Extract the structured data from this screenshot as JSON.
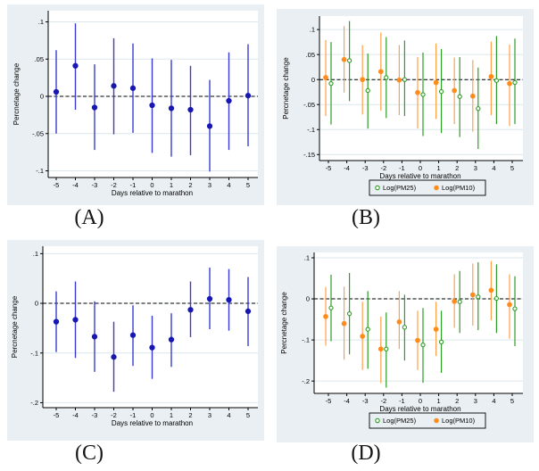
{
  "figure": {
    "background": "#ffffff"
  },
  "colors": {
    "panel_bg": "#e9eff3",
    "plot_bg": "#ffffff",
    "grid": "#dce7ed",
    "axis": "#000000",
    "zero_line": "#000000",
    "text": "#000000",
    "blue_line": "#3b3bd1",
    "blue_marker": "#1717b2",
    "green": "#2f9d27",
    "orange_line": "#ffa04a",
    "orange_marker": "#ff8c1a",
    "legend_border": "#000000"
  },
  "panels": [
    {
      "letter": "(A)"
    },
    {
      "letter": "(B)"
    },
    {
      "letter": "(C)"
    },
    {
      "letter": "(D)"
    }
  ],
  "chart_data": [
    {
      "id": "A",
      "type": "scatter",
      "title": "",
      "xlabel": "Days relative to marathon",
      "ylabel": "Percnetage change",
      "x_labels": [
        "-5",
        "-4",
        "-3",
        "-2",
        "-1",
        "0",
        "1",
        "2",
        "3",
        "4",
        "5"
      ],
      "x_values": [
        -5,
        -4,
        -3,
        -2,
        -1,
        0,
        1,
        2,
        3,
        4,
        5
      ],
      "ylim": [
        -0.109,
        0.115
      ],
      "yticks": [
        {
          "v": 0.1,
          "label": ".1"
        },
        {
          "v": 0.05,
          "label": ".05"
        },
        {
          "v": 0,
          "label": "0"
        },
        {
          "v": -0.05,
          "label": "-.05"
        },
        {
          "v": -0.1,
          "label": "-.1"
        }
      ],
      "zero_line": true,
      "grid": true,
      "legend": false,
      "series": [
        {
          "name": "",
          "color_key": "blue",
          "marker": "filled",
          "offset": 0,
          "est": [
            0.006,
            0.041,
            -0.015,
            0.014,
            0.011,
            -0.012,
            -0.016,
            -0.018,
            -0.04,
            -0.006,
            0.001
          ],
          "lo": [
            -0.05,
            -0.018,
            -0.072,
            -0.051,
            -0.049,
            -0.076,
            -0.081,
            -0.079,
            -0.101,
            -0.072,
            -0.067
          ],
          "hi": [
            0.062,
            0.098,
            0.043,
            0.078,
            0.071,
            0.051,
            0.049,
            0.041,
            0.022,
            0.059,
            0.07
          ]
        }
      ]
    },
    {
      "id": "B",
      "type": "scatter",
      "title": "",
      "xlabel": "Days relative to marathon",
      "ylabel": "Percnetage change",
      "x_labels": [
        "-5",
        "-4",
        "-3",
        "-2",
        "-1",
        "0",
        "1",
        "2",
        "3",
        "4",
        "5"
      ],
      "x_values": [
        -5,
        -4,
        -3,
        -2,
        -1,
        0,
        1,
        2,
        3,
        4,
        5
      ],
      "ylim": [
        -0.162,
        0.127
      ],
      "yticks": [
        {
          "v": 0.1,
          "label": ".1"
        },
        {
          "v": 0.05,
          "label": ".05"
        },
        {
          "v": 0,
          "label": "0"
        },
        {
          "v": -0.05,
          "label": "-.05"
        },
        {
          "v": -0.1,
          "label": "-.1"
        },
        {
          "v": -0.15,
          "label": "-.15"
        }
      ],
      "zero_line": true,
      "grid": true,
      "legend": true,
      "series": [
        {
          "name": "Log(PM25)",
          "color_key": "green",
          "marker": "hollow",
          "offset": 3,
          "est": [
            -0.008,
            0.038,
            -0.022,
            0.004,
            0.0,
            -0.03,
            -0.024,
            -0.034,
            -0.058,
            -0.002,
            -0.006
          ],
          "lo": [
            -0.09,
            -0.043,
            -0.098,
            -0.077,
            -0.073,
            -0.113,
            -0.107,
            -0.115,
            -0.139,
            -0.089,
            -0.089
          ],
          "hi": [
            0.075,
            0.117,
            0.052,
            0.085,
            0.078,
            0.054,
            0.061,
            0.045,
            0.024,
            0.087,
            0.082
          ]
        },
        {
          "name": "Log(PM10)",
          "color_key": "orange",
          "marker": "filled",
          "offset": -3,
          "est": [
            0.004,
            0.04,
            0.0,
            0.016,
            -0.001,
            -0.026,
            -0.006,
            -0.022,
            -0.033,
            0.006,
            -0.008
          ],
          "lo": [
            -0.073,
            -0.026,
            -0.07,
            -0.062,
            -0.071,
            -0.098,
            -0.079,
            -0.089,
            -0.104,
            -0.071,
            -0.093
          ],
          "hi": [
            0.079,
            0.107,
            0.069,
            0.094,
            0.069,
            0.045,
            0.072,
            0.044,
            0.039,
            0.076,
            0.07
          ]
        }
      ]
    },
    {
      "id": "C",
      "type": "scatter",
      "title": "",
      "xlabel": "Days relative to marathon",
      "ylabel": "Percnetage change",
      "x_labels": [
        "-5",
        "-4",
        "-3",
        "-2",
        "-1",
        "0",
        "1",
        "2",
        "3",
        "4",
        "5"
      ],
      "x_values": [
        -5,
        -4,
        -3,
        -2,
        -1,
        0,
        1,
        2,
        3,
        4,
        5
      ],
      "ylim": [
        -0.21,
        0.115
      ],
      "yticks": [
        {
          "v": 0.1,
          "label": ".1"
        },
        {
          "v": 0,
          "label": "0"
        },
        {
          "v": -0.1,
          "label": "-.1"
        },
        {
          "v": -0.2,
          "label": "-.2"
        }
      ],
      "zero_line": true,
      "grid": true,
      "legend": false,
      "series": [
        {
          "name": "",
          "color_key": "blue",
          "marker": "filled",
          "offset": 0,
          "est": [
            -0.037,
            -0.033,
            -0.067,
            -0.108,
            -0.064,
            -0.089,
            -0.073,
            -0.013,
            0.009,
            0.007,
            -0.016
          ],
          "lo": [
            -0.098,
            -0.11,
            -0.138,
            -0.178,
            -0.126,
            -0.152,
            -0.128,
            -0.068,
            -0.052,
            -0.055,
            -0.086
          ],
          "hi": [
            0.024,
            0.044,
            0.004,
            -0.037,
            -0.004,
            -0.025,
            -0.02,
            0.044,
            0.072,
            0.069,
            0.053
          ]
        }
      ]
    },
    {
      "id": "D",
      "type": "scatter",
      "title": "",
      "xlabel": "Days relative to marathon",
      "ylabel": "Percnetage change",
      "x_labels": [
        "-5",
        "-4",
        "-3",
        "-2",
        "-1",
        "0",
        "1",
        "2",
        "3",
        "4",
        "5"
      ],
      "x_values": [
        -5,
        -4,
        -3,
        -2,
        -1,
        0,
        1,
        2,
        3,
        4,
        5
      ],
      "ylim": [
        -0.23,
        0.113
      ],
      "yticks": [
        {
          "v": 0.1,
          "label": ".1"
        },
        {
          "v": 0,
          "label": "0"
        },
        {
          "v": -0.1,
          "label": "-.1"
        },
        {
          "v": -0.2,
          "label": "-.2"
        }
      ],
      "zero_line": true,
      "grid": true,
      "legend": true,
      "series": [
        {
          "name": "Log(PM25)",
          "color_key": "green",
          "marker": "hollow",
          "offset": 3,
          "est": [
            -0.022,
            -0.036,
            -0.074,
            -0.122,
            -0.069,
            -0.112,
            -0.105,
            -0.007,
            0.005,
            0.001,
            -0.024
          ],
          "lo": [
            -0.103,
            -0.135,
            -0.17,
            -0.216,
            -0.15,
            -0.204,
            -0.18,
            -0.083,
            -0.076,
            -0.083,
            -0.115
          ],
          "hi": [
            0.059,
            0.063,
            0.019,
            -0.033,
            0.01,
            -0.022,
            -0.029,
            0.068,
            0.089,
            0.084,
            0.055
          ]
        },
        {
          "name": "Log(PM10)",
          "color_key": "orange",
          "marker": "filled",
          "offset": -3,
          "est": [
            -0.043,
            -0.06,
            -0.091,
            -0.122,
            -0.056,
            -0.101,
            -0.074,
            -0.006,
            0.01,
            0.021,
            -0.014
          ],
          "lo": [
            -0.114,
            -0.148,
            -0.173,
            -0.205,
            -0.122,
            -0.173,
            -0.139,
            -0.07,
            -0.065,
            -0.052,
            -0.097
          ],
          "hi": [
            0.029,
            0.03,
            -0.007,
            -0.043,
            0.019,
            -0.029,
            -0.007,
            0.06,
            0.086,
            0.092,
            0.06
          ]
        }
      ]
    }
  ]
}
